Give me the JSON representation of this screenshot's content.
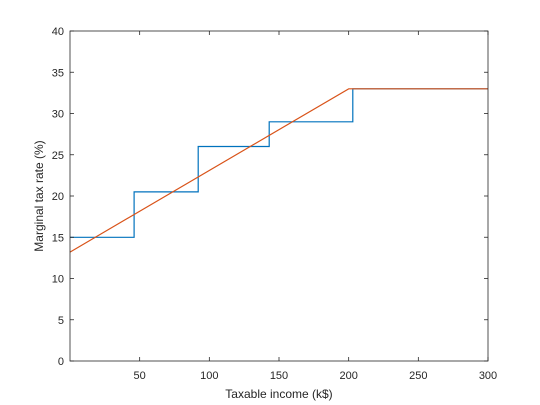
{
  "chart_data": {
    "type": "line",
    "title": "",
    "xlabel": "Taxable income (k$)",
    "ylabel": "Marginal tax rate (%)",
    "xlim": [
      0,
      300
    ],
    "ylim": [
      0,
      40
    ],
    "x_ticks": [
      50,
      100,
      150,
      200,
      250,
      300
    ],
    "y_ticks": [
      0,
      5,
      10,
      15,
      20,
      25,
      30,
      35,
      40
    ],
    "grid": false,
    "legend": "none",
    "series": [
      {
        "style": "step",
        "color": "#0072BD",
        "x": [
          0,
          46,
          46,
          92,
          92,
          143,
          143,
          203,
          203,
          300
        ],
        "y": [
          15,
          15,
          20.5,
          20.5,
          26,
          26,
          29,
          29,
          33,
          33
        ]
      },
      {
        "style": "line",
        "color": "#D95319",
        "x": [
          0,
          200,
          300
        ],
        "y": [
          13.2,
          33,
          33
        ]
      }
    ]
  }
}
